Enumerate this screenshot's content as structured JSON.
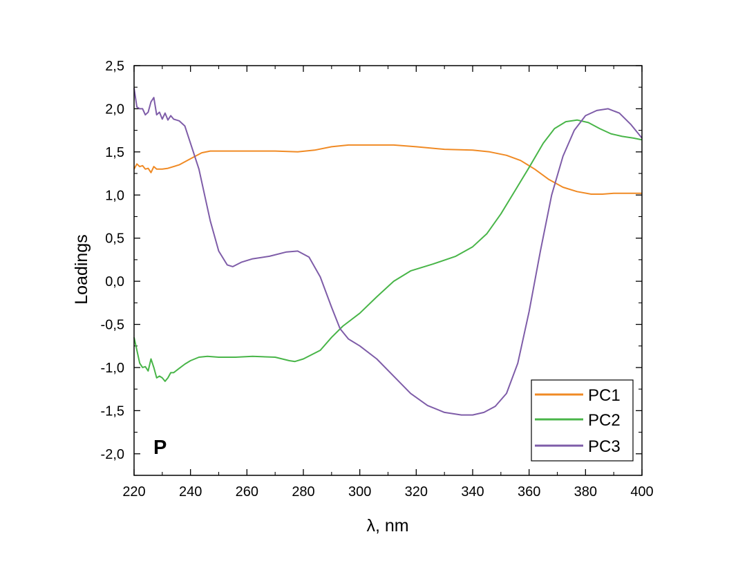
{
  "chart_data": {
    "type": "line",
    "title": "",
    "xlabel": "λ, nm",
    "ylabel": "Loadings",
    "panel_label": "P",
    "xlim": [
      220,
      400
    ],
    "ylim": [
      -2.25,
      2.5
    ],
    "x_ticks": [
      220,
      240,
      260,
      280,
      300,
      320,
      340,
      360,
      380,
      400
    ],
    "x_tick_labels": [
      "220",
      "240",
      "260",
      "280",
      "300",
      "320",
      "340",
      "360",
      "380",
      "400"
    ],
    "y_ticks": [
      -2.0,
      -1.5,
      -1.0,
      -0.5,
      0.0,
      0.5,
      1.0,
      1.5,
      2.0,
      2.5
    ],
    "y_tick_labels": [
      "-2,0",
      "-1,5",
      "-1,0",
      "-0,5",
      "0,0",
      "0,5",
      "1,0",
      "1,5",
      "2,0",
      "2,5"
    ],
    "grid": false,
    "legend_position": "bottom-right",
    "series": [
      {
        "name": "PC1",
        "color": "#f08a24",
        "points": [
          [
            220,
            1.3
          ],
          [
            221,
            1.36
          ],
          [
            222,
            1.33
          ],
          [
            223,
            1.34
          ],
          [
            224,
            1.3
          ],
          [
            225,
            1.31
          ],
          [
            226,
            1.26
          ],
          [
            227,
            1.33
          ],
          [
            228,
            1.3
          ],
          [
            230,
            1.3
          ],
          [
            232,
            1.31
          ],
          [
            236,
            1.35
          ],
          [
            240,
            1.42
          ],
          [
            244,
            1.49
          ],
          [
            247,
            1.51
          ],
          [
            252,
            1.51
          ],
          [
            260,
            1.51
          ],
          [
            270,
            1.51
          ],
          [
            278,
            1.5
          ],
          [
            284,
            1.52
          ],
          [
            290,
            1.56
          ],
          [
            296,
            1.58
          ],
          [
            304,
            1.58
          ],
          [
            312,
            1.58
          ],
          [
            320,
            1.56
          ],
          [
            330,
            1.53
          ],
          [
            340,
            1.52
          ],
          [
            346,
            1.5
          ],
          [
            352,
            1.46
          ],
          [
            357,
            1.4
          ],
          [
            362,
            1.3
          ],
          [
            367,
            1.18
          ],
          [
            372,
            1.09
          ],
          [
            377,
            1.04
          ],
          [
            382,
            1.01
          ],
          [
            386,
            1.01
          ],
          [
            390,
            1.02
          ],
          [
            395,
            1.02
          ],
          [
            400,
            1.02
          ]
        ]
      },
      {
        "name": "PC2",
        "color": "#48b548",
        "points": [
          [
            220,
            -0.65
          ],
          [
            221,
            -0.8
          ],
          [
            222,
            -0.95
          ],
          [
            223,
            -1.0
          ],
          [
            224,
            -0.99
          ],
          [
            225,
            -1.04
          ],
          [
            226,
            -0.9
          ],
          [
            227,
            -1.0
          ],
          [
            228,
            -1.12
          ],
          [
            229,
            -1.1
          ],
          [
            230,
            -1.12
          ],
          [
            231,
            -1.16
          ],
          [
            232,
            -1.12
          ],
          [
            233,
            -1.06
          ],
          [
            234,
            -1.06
          ],
          [
            236,
            -1.01
          ],
          [
            238,
            -0.96
          ],
          [
            240,
            -0.92
          ],
          [
            243,
            -0.88
          ],
          [
            246,
            -0.87
          ],
          [
            250,
            -0.88
          ],
          [
            256,
            -0.88
          ],
          [
            262,
            -0.87
          ],
          [
            270,
            -0.88
          ],
          [
            275,
            -0.92
          ],
          [
            277,
            -0.93
          ],
          [
            280,
            -0.9
          ],
          [
            286,
            -0.8
          ],
          [
            290,
            -0.65
          ],
          [
            294,
            -0.52
          ],
          [
            300,
            -0.37
          ],
          [
            306,
            -0.18
          ],
          [
            312,
            0.0
          ],
          [
            318,
            0.12
          ],
          [
            326,
            0.2
          ],
          [
            334,
            0.29
          ],
          [
            340,
            0.4
          ],
          [
            345,
            0.55
          ],
          [
            350,
            0.78
          ],
          [
            355,
            1.05
          ],
          [
            360,
            1.32
          ],
          [
            365,
            1.6
          ],
          [
            369,
            1.77
          ],
          [
            373,
            1.85
          ],
          [
            377,
            1.87
          ],
          [
            381,
            1.84
          ],
          [
            385,
            1.77
          ],
          [
            389,
            1.71
          ],
          [
            393,
            1.68
          ],
          [
            397,
            1.66
          ],
          [
            400,
            1.64
          ]
        ]
      },
      {
        "name": "PC3",
        "color": "#7e5ca8",
        "points": [
          [
            220,
            2.24
          ],
          [
            221,
            2.02
          ],
          [
            222,
            2.0
          ],
          [
            223,
            2.0
          ],
          [
            224,
            1.93
          ],
          [
            225,
            1.96
          ],
          [
            226,
            2.08
          ],
          [
            227,
            2.13
          ],
          [
            228,
            1.93
          ],
          [
            229,
            1.96
          ],
          [
            230,
            1.88
          ],
          [
            231,
            1.95
          ],
          [
            232,
            1.87
          ],
          [
            233,
            1.92
          ],
          [
            234,
            1.88
          ],
          [
            236,
            1.86
          ],
          [
            238,
            1.8
          ],
          [
            240,
            1.6
          ],
          [
            243,
            1.3
          ],
          [
            245,
            1.0
          ],
          [
            247,
            0.7
          ],
          [
            250,
            0.35
          ],
          [
            253,
            0.19
          ],
          [
            255,
            0.17
          ],
          [
            258,
            0.22
          ],
          [
            262,
            0.26
          ],
          [
            268,
            0.29
          ],
          [
            274,
            0.34
          ],
          [
            278,
            0.35
          ],
          [
            282,
            0.28
          ],
          [
            286,
            0.05
          ],
          [
            290,
            -0.3
          ],
          [
            293,
            -0.55
          ],
          [
            296,
            -0.67
          ],
          [
            300,
            -0.75
          ],
          [
            306,
            -0.9
          ],
          [
            312,
            -1.1
          ],
          [
            318,
            -1.3
          ],
          [
            324,
            -1.44
          ],
          [
            330,
            -1.52
          ],
          [
            336,
            -1.55
          ],
          [
            340,
            -1.55
          ],
          [
            344,
            -1.52
          ],
          [
            348,
            -1.45
          ],
          [
            352,
            -1.3
          ],
          [
            356,
            -0.95
          ],
          [
            360,
            -0.35
          ],
          [
            364,
            0.35
          ],
          [
            368,
            1.0
          ],
          [
            372,
            1.45
          ],
          [
            376,
            1.75
          ],
          [
            380,
            1.92
          ],
          [
            384,
            1.98
          ],
          [
            388,
            2.0
          ],
          [
            392,
            1.95
          ],
          [
            396,
            1.82
          ],
          [
            400,
            1.66
          ]
        ]
      }
    ]
  }
}
